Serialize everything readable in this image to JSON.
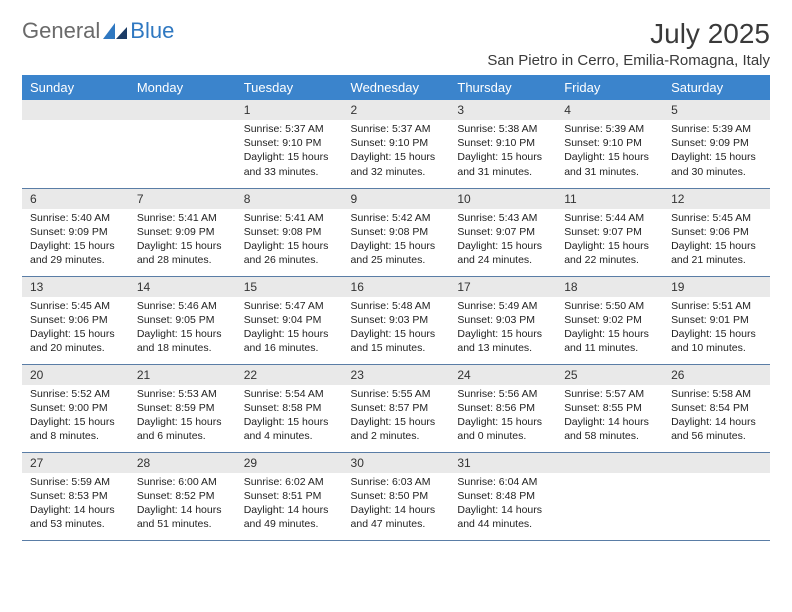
{
  "brand": {
    "part1": "General",
    "part2": "Blue"
  },
  "title": "July 2025",
  "location": "San Pietro in Cerro, Emilia-Romagna, Italy",
  "colors": {
    "header_bg": "#3b84cc",
    "header_text": "#ffffff",
    "daynum_bg": "#e9e9e9",
    "cell_border": "#5a7da6",
    "logo_gray": "#6a6a6a",
    "logo_blue": "#2f78c1",
    "text": "#222222"
  },
  "day_headers": [
    "Sunday",
    "Monday",
    "Tuesday",
    "Wednesday",
    "Thursday",
    "Friday",
    "Saturday"
  ],
  "weeks": [
    [
      null,
      null,
      {
        "n": "1",
        "sunrise": "Sunrise: 5:37 AM",
        "sunset": "Sunset: 9:10 PM",
        "daylight": "Daylight: 15 hours and 33 minutes."
      },
      {
        "n": "2",
        "sunrise": "Sunrise: 5:37 AM",
        "sunset": "Sunset: 9:10 PM",
        "daylight": "Daylight: 15 hours and 32 minutes."
      },
      {
        "n": "3",
        "sunrise": "Sunrise: 5:38 AM",
        "sunset": "Sunset: 9:10 PM",
        "daylight": "Daylight: 15 hours and 31 minutes."
      },
      {
        "n": "4",
        "sunrise": "Sunrise: 5:39 AM",
        "sunset": "Sunset: 9:10 PM",
        "daylight": "Daylight: 15 hours and 31 minutes."
      },
      {
        "n": "5",
        "sunrise": "Sunrise: 5:39 AM",
        "sunset": "Sunset: 9:09 PM",
        "daylight": "Daylight: 15 hours and 30 minutes."
      }
    ],
    [
      {
        "n": "6",
        "sunrise": "Sunrise: 5:40 AM",
        "sunset": "Sunset: 9:09 PM",
        "daylight": "Daylight: 15 hours and 29 minutes."
      },
      {
        "n": "7",
        "sunrise": "Sunrise: 5:41 AM",
        "sunset": "Sunset: 9:09 PM",
        "daylight": "Daylight: 15 hours and 28 minutes."
      },
      {
        "n": "8",
        "sunrise": "Sunrise: 5:41 AM",
        "sunset": "Sunset: 9:08 PM",
        "daylight": "Daylight: 15 hours and 26 minutes."
      },
      {
        "n": "9",
        "sunrise": "Sunrise: 5:42 AM",
        "sunset": "Sunset: 9:08 PM",
        "daylight": "Daylight: 15 hours and 25 minutes."
      },
      {
        "n": "10",
        "sunrise": "Sunrise: 5:43 AM",
        "sunset": "Sunset: 9:07 PM",
        "daylight": "Daylight: 15 hours and 24 minutes."
      },
      {
        "n": "11",
        "sunrise": "Sunrise: 5:44 AM",
        "sunset": "Sunset: 9:07 PM",
        "daylight": "Daylight: 15 hours and 22 minutes."
      },
      {
        "n": "12",
        "sunrise": "Sunrise: 5:45 AM",
        "sunset": "Sunset: 9:06 PM",
        "daylight": "Daylight: 15 hours and 21 minutes."
      }
    ],
    [
      {
        "n": "13",
        "sunrise": "Sunrise: 5:45 AM",
        "sunset": "Sunset: 9:06 PM",
        "daylight": "Daylight: 15 hours and 20 minutes."
      },
      {
        "n": "14",
        "sunrise": "Sunrise: 5:46 AM",
        "sunset": "Sunset: 9:05 PM",
        "daylight": "Daylight: 15 hours and 18 minutes."
      },
      {
        "n": "15",
        "sunrise": "Sunrise: 5:47 AM",
        "sunset": "Sunset: 9:04 PM",
        "daylight": "Daylight: 15 hours and 16 minutes."
      },
      {
        "n": "16",
        "sunrise": "Sunrise: 5:48 AM",
        "sunset": "Sunset: 9:03 PM",
        "daylight": "Daylight: 15 hours and 15 minutes."
      },
      {
        "n": "17",
        "sunrise": "Sunrise: 5:49 AM",
        "sunset": "Sunset: 9:03 PM",
        "daylight": "Daylight: 15 hours and 13 minutes."
      },
      {
        "n": "18",
        "sunrise": "Sunrise: 5:50 AM",
        "sunset": "Sunset: 9:02 PM",
        "daylight": "Daylight: 15 hours and 11 minutes."
      },
      {
        "n": "19",
        "sunrise": "Sunrise: 5:51 AM",
        "sunset": "Sunset: 9:01 PM",
        "daylight": "Daylight: 15 hours and 10 minutes."
      }
    ],
    [
      {
        "n": "20",
        "sunrise": "Sunrise: 5:52 AM",
        "sunset": "Sunset: 9:00 PM",
        "daylight": "Daylight: 15 hours and 8 minutes."
      },
      {
        "n": "21",
        "sunrise": "Sunrise: 5:53 AM",
        "sunset": "Sunset: 8:59 PM",
        "daylight": "Daylight: 15 hours and 6 minutes."
      },
      {
        "n": "22",
        "sunrise": "Sunrise: 5:54 AM",
        "sunset": "Sunset: 8:58 PM",
        "daylight": "Daylight: 15 hours and 4 minutes."
      },
      {
        "n": "23",
        "sunrise": "Sunrise: 5:55 AM",
        "sunset": "Sunset: 8:57 PM",
        "daylight": "Daylight: 15 hours and 2 minutes."
      },
      {
        "n": "24",
        "sunrise": "Sunrise: 5:56 AM",
        "sunset": "Sunset: 8:56 PM",
        "daylight": "Daylight: 15 hours and 0 minutes."
      },
      {
        "n": "25",
        "sunrise": "Sunrise: 5:57 AM",
        "sunset": "Sunset: 8:55 PM",
        "daylight": "Daylight: 14 hours and 58 minutes."
      },
      {
        "n": "26",
        "sunrise": "Sunrise: 5:58 AM",
        "sunset": "Sunset: 8:54 PM",
        "daylight": "Daylight: 14 hours and 56 minutes."
      }
    ],
    [
      {
        "n": "27",
        "sunrise": "Sunrise: 5:59 AM",
        "sunset": "Sunset: 8:53 PM",
        "daylight": "Daylight: 14 hours and 53 minutes."
      },
      {
        "n": "28",
        "sunrise": "Sunrise: 6:00 AM",
        "sunset": "Sunset: 8:52 PM",
        "daylight": "Daylight: 14 hours and 51 minutes."
      },
      {
        "n": "29",
        "sunrise": "Sunrise: 6:02 AM",
        "sunset": "Sunset: 8:51 PM",
        "daylight": "Daylight: 14 hours and 49 minutes."
      },
      {
        "n": "30",
        "sunrise": "Sunrise: 6:03 AM",
        "sunset": "Sunset: 8:50 PM",
        "daylight": "Daylight: 14 hours and 47 minutes."
      },
      {
        "n": "31",
        "sunrise": "Sunrise: 6:04 AM",
        "sunset": "Sunset: 8:48 PM",
        "daylight": "Daylight: 14 hours and 44 minutes."
      },
      null,
      null
    ]
  ]
}
